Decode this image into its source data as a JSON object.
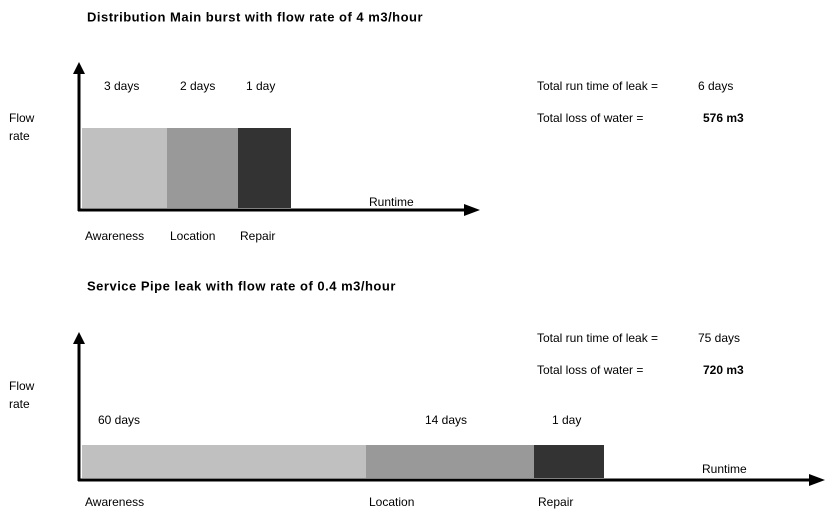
{
  "panels": [
    {
      "title": "Distribution Main burst with flow rate of 4 m3/hour",
      "y_label": [
        "Flow",
        "rate"
      ],
      "x_label": "Runtime",
      "segments": [
        {
          "duration": "3 days",
          "phase": "Awareness"
        },
        {
          "duration": "2 days",
          "phase": "Location"
        },
        {
          "duration": "1 day",
          "phase": "Repair"
        }
      ],
      "run_time_label": "Total run time of leak =",
      "run_time_value": "6 days",
      "loss_label": "Total loss of water =",
      "loss_value": "576 m3"
    },
    {
      "title": "Service Pipe leak with flow rate of 0.4 m3/hour",
      "y_label": [
        "Flow",
        "rate"
      ],
      "x_label": "Runtime",
      "segments": [
        {
          "duration": "60 days",
          "phase": "Awareness"
        },
        {
          "duration": "14 days",
          "phase": "Location"
        },
        {
          "duration": "1 day",
          "phase": "Repair"
        }
      ],
      "run_time_label": "Total run time of leak =",
      "run_time_value": "75 days",
      "loss_label": "Total loss of water =",
      "loss_value": "720 m3"
    }
  ]
}
